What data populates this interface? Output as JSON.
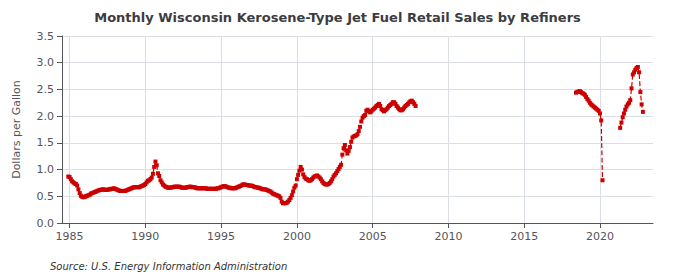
{
  "chart_data": {
    "type": "line",
    "title": "Monthly Wisconsin Kerosene-Type Jet Fuel Retail Sales by Refiners",
    "y_label": "Dollars per Gallon",
    "annotations": [
      "Source: U.S. Energy Information Administration"
    ],
    "xlim": [
      1984.5,
      2023.5
    ],
    "ylim": [
      0.0,
      3.5
    ],
    "xticks": [
      1985,
      1990,
      1995,
      2000,
      2005,
      2010,
      2015,
      2020
    ],
    "yticks": [
      {
        "value": 0.0,
        "label": "0.0"
      },
      0.5,
      {
        "value": 1.0,
        "label": "1.0"
      },
      1.5,
      {
        "value": 2.0,
        "label": "2.0"
      },
      2.5,
      {
        "value": 3.0,
        "label": "3.0"
      },
      3.5
    ],
    "grid": true,
    "color": "#cc0000",
    "marker": "square",
    "line_style": "dashed",
    "series": [
      {
        "x": [
          1984.917,
          1985.0,
          1985.083,
          1985.167,
          1985.25,
          1985.333,
          1985.417,
          1985.5,
          1985.583,
          1985.667,
          1985.75,
          1985.833,
          1985.917,
          1986.0,
          1986.083,
          1986.167,
          1986.25,
          1986.333,
          1986.417,
          1986.5,
          1986.583,
          1986.667,
          1986.75,
          1986.833,
          1986.917,
          1987.0,
          1987.083,
          1987.167,
          1987.25,
          1987.333,
          1987.417,
          1987.5,
          1987.583,
          1987.667,
          1987.75,
          1987.833,
          1987.917,
          1988.0,
          1988.083,
          1988.167,
          1988.25,
          1988.333,
          1988.417,
          1988.5,
          1988.583,
          1988.667,
          1988.75,
          1988.833,
          1988.917,
          1989.0,
          1989.083,
          1989.167,
          1989.25,
          1989.333,
          1989.417,
          1989.5,
          1989.583,
          1989.667,
          1989.75,
          1989.833,
          1989.917,
          1990.0,
          1990.083,
          1990.167,
          1990.25,
          1990.333,
          1990.417,
          1990.5,
          1990.583,
          1990.667,
          1990.75,
          1990.833,
          1990.917,
          1991.0,
          1991.083,
          1991.167,
          1991.25,
          1991.333,
          1991.417,
          1991.5,
          1991.583,
          1991.667,
          1991.75,
          1991.833,
          1991.917,
          1992.0,
          1992.083,
          1992.167,
          1992.25,
          1992.333,
          1992.417,
          1992.5,
          1992.583,
          1992.667,
          1992.75,
          1992.833,
          1992.917,
          1993.0,
          1993.083,
          1993.167,
          1993.25,
          1993.333,
          1993.417,
          1993.5,
          1993.583,
          1993.667,
          1993.75,
          1993.833,
          1993.917,
          1994.0,
          1994.083,
          1994.167,
          1994.25,
          1994.333,
          1994.417,
          1994.5,
          1994.583,
          1994.667,
          1994.75,
          1994.833,
          1994.917,
          1995.0,
          1995.083,
          1995.167,
          1995.25,
          1995.333,
          1995.417,
          1995.5,
          1995.583,
          1995.667,
          1995.75,
          1995.833,
          1995.917,
          1996.0,
          1996.083,
          1996.167,
          1996.25,
          1996.333,
          1996.417,
          1996.5,
          1996.583,
          1996.667,
          1996.75,
          1996.833,
          1996.917,
          1997.0,
          1997.083,
          1997.167,
          1997.25,
          1997.333,
          1997.417,
          1997.5,
          1997.583,
          1997.667,
          1997.75,
          1997.833,
          1997.917,
          1998.0,
          1998.083,
          1998.167,
          1998.25,
          1998.333,
          1998.417,
          1998.5,
          1998.583,
          1998.667,
          1998.75,
          1998.833,
          1998.917,
          1999.0,
          1999.083,
          1999.167,
          1999.25,
          1999.333,
          1999.417,
          1999.5,
          1999.583,
          1999.667,
          1999.75,
          1999.833,
          1999.917,
          2000.0,
          2000.083,
          2000.167,
          2000.25,
          2000.333,
          2000.417,
          2000.5,
          2000.583,
          2000.667,
          2000.75,
          2000.833,
          2000.917,
          2001.0,
          2001.083,
          2001.167,
          2001.25,
          2001.333,
          2001.417,
          2001.5,
          2001.583,
          2001.667,
          2001.75,
          2001.833,
          2001.917,
          2002.0,
          2002.083,
          2002.167,
          2002.25,
          2002.333,
          2002.417,
          2002.5,
          2002.583,
          2002.667,
          2002.75,
          2002.833,
          2002.917,
          2003.0,
          2003.083,
          2003.167,
          2003.25,
          2003.333,
          2003.417,
          2003.5,
          2003.583,
          2003.667,
          2003.75,
          2003.833,
          2003.917,
          2004.0,
          2004.083,
          2004.167,
          2004.25,
          2004.333,
          2004.417,
          2004.5,
          2004.583,
          2004.667,
          2004.75,
          2004.833,
          2004.917,
          2005.0,
          2005.083,
          2005.167,
          2005.25,
          2005.333,
          2005.417,
          2005.5,
          2005.583,
          2005.667,
          2005.75,
          2005.833,
          2005.917,
          2006.0,
          2006.083,
          2006.167,
          2006.25,
          2006.333,
          2006.417,
          2006.5,
          2006.583,
          2006.667,
          2006.75,
          2006.833,
          2006.917,
          2007.0,
          2007.083,
          2007.167,
          2007.25,
          2007.333,
          2007.417,
          2007.5,
          2007.583,
          2007.667,
          2007.75,
          2007.833
        ],
        "values": [
          0.87,
          0.86,
          0.82,
          0.78,
          0.76,
          0.74,
          0.73,
          0.7,
          0.63,
          0.56,
          0.51,
          0.49,
          0.48,
          0.49,
          0.5,
          0.51,
          0.52,
          0.53,
          0.55,
          0.56,
          0.57,
          0.58,
          0.59,
          0.6,
          0.61,
          0.62,
          0.62,
          0.63,
          0.63,
          0.62,
          0.62,
          0.62,
          0.63,
          0.63,
          0.64,
          0.64,
          0.65,
          0.64,
          0.63,
          0.62,
          0.61,
          0.6,
          0.6,
          0.6,
          0.6,
          0.6,
          0.61,
          0.62,
          0.63,
          0.64,
          0.65,
          0.66,
          0.67,
          0.67,
          0.67,
          0.67,
          0.67,
          0.68,
          0.69,
          0.7,
          0.71,
          0.73,
          0.76,
          0.79,
          0.8,
          0.82,
          0.85,
          0.92,
          1.05,
          1.15,
          1.08,
          0.93,
          0.88,
          0.8,
          0.76,
          0.72,
          0.7,
          0.68,
          0.67,
          0.66,
          0.66,
          0.66,
          0.67,
          0.67,
          0.68,
          0.68,
          0.68,
          0.68,
          0.68,
          0.67,
          0.66,
          0.66,
          0.66,
          0.66,
          0.67,
          0.67,
          0.68,
          0.68,
          0.67,
          0.67,
          0.67,
          0.66,
          0.65,
          0.65,
          0.65,
          0.65,
          0.65,
          0.65,
          0.65,
          0.65,
          0.64,
          0.64,
          0.64,
          0.64,
          0.64,
          0.64,
          0.64,
          0.64,
          0.65,
          0.65,
          0.66,
          0.67,
          0.68,
          0.69,
          0.69,
          0.68,
          0.67,
          0.66,
          0.66,
          0.65,
          0.65,
          0.65,
          0.65,
          0.66,
          0.67,
          0.68,
          0.69,
          0.7,
          0.72,
          0.72,
          0.72,
          0.71,
          0.71,
          0.7,
          0.7,
          0.7,
          0.69,
          0.68,
          0.67,
          0.67,
          0.66,
          0.66,
          0.65,
          0.64,
          0.63,
          0.63,
          0.63,
          0.62,
          0.61,
          0.6,
          0.59,
          0.57,
          0.55,
          0.54,
          0.53,
          0.52,
          0.51,
          0.5,
          0.47,
          0.4,
          0.37,
          0.37,
          0.37,
          0.38,
          0.4,
          0.43,
          0.47,
          0.52,
          0.59,
          0.66,
          0.7,
          0.82,
          0.9,
          0.98,
          1.05,
          1.0,
          0.91,
          0.86,
          0.83,
          0.82,
          0.8,
          0.79,
          0.8,
          0.82,
          0.85,
          0.87,
          0.88,
          0.89,
          0.87,
          0.85,
          0.82,
          0.78,
          0.75,
          0.73,
          0.72,
          0.72,
          0.73,
          0.75,
          0.78,
          0.82,
          0.87,
          0.9,
          0.93,
          0.97,
          1.01,
          1.05,
          1.09,
          1.28,
          1.4,
          1.46,
          1.36,
          1.3,
          1.35,
          1.42,
          1.52,
          1.6,
          1.62,
          1.63,
          1.64,
          1.66,
          1.72,
          1.8,
          1.9,
          1.97,
          2.0,
          2.02,
          2.1,
          2.12,
          2.09,
          2.07,
          2.09,
          2.12,
          2.14,
          2.16,
          2.19,
          2.21,
          2.23,
          2.19,
          2.13,
          2.11,
          2.09,
          2.11,
          2.13,
          2.16,
          2.19,
          2.21,
          2.23,
          2.26,
          2.26,
          2.23,
          2.19,
          2.16,
          2.13,
          2.11,
          2.11,
          2.13,
          2.16,
          2.19,
          2.21,
          2.23,
          2.26,
          2.28,
          2.29,
          2.26,
          2.23,
          2.19
        ]
      },
      {
        "x": [
          2018.417,
          2018.5,
          2018.583,
          2018.667,
          2018.75,
          2018.833,
          2018.917,
          2019.0,
          2019.083,
          2019.167,
          2019.25,
          2019.333,
          2019.417,
          2019.5,
          2019.583,
          2019.667,
          2019.75,
          2019.833,
          2019.917,
          2020.0,
          2020.083,
          2020.167
        ],
        "values": [
          2.44,
          2.45,
          2.46,
          2.47,
          2.45,
          2.43,
          2.42,
          2.4,
          2.36,
          2.32,
          2.29,
          2.25,
          2.22,
          2.2,
          2.18,
          2.16,
          2.14,
          2.12,
          2.1,
          2.05,
          1.92,
          0.8
        ]
      },
      {
        "x": [
          2021.333,
          2021.417,
          2021.5,
          2021.583,
          2021.667,
          2021.75,
          2021.833,
          2021.917,
          2022.0,
          2022.083,
          2022.167,
          2022.25,
          2022.333,
          2022.417,
          2022.5,
          2022.583,
          2022.667,
          2022.75,
          2022.833
        ],
        "values": [
          1.78,
          1.88,
          1.98,
          2.05,
          2.12,
          2.18,
          2.22,
          2.25,
          2.3,
          2.52,
          2.78,
          2.82,
          2.87,
          2.9,
          2.92,
          2.82,
          2.45,
          2.22,
          2.08
        ]
      }
    ]
  }
}
